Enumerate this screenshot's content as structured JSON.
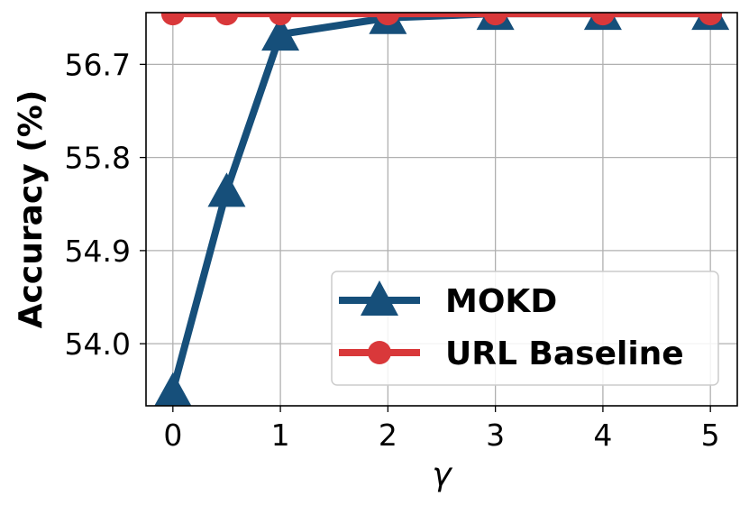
{
  "chart_data": {
    "type": "line",
    "xlabel": "γ",
    "ylabel": "Accuracy (%)",
    "x": [
      0,
      0.5,
      1,
      2,
      3,
      4,
      5
    ],
    "xticks": [
      "0",
      "1",
      "2",
      "3",
      "4",
      "5"
    ],
    "xtick_values": [
      0,
      1,
      2,
      3,
      4,
      5
    ],
    "yticks": [
      "54.0",
      "54.9",
      "55.8",
      "56.7"
    ],
    "ytick_values": [
      54.0,
      54.9,
      55.8,
      56.7
    ],
    "xlim": [
      -0.25,
      5.25
    ],
    "ylim": [
      53.4,
      57.2
    ],
    "grid": true,
    "legend_position": "lower-right",
    "series": [
      {
        "name": "MOKD",
        "color": "#164F7A",
        "marker": "triangle",
        "x": [
          0,
          0.5,
          1,
          2,
          3,
          4,
          5
        ],
        "values": [
          53.55,
          55.48,
          56.99,
          57.15,
          57.19,
          57.19,
          57.19
        ]
      },
      {
        "name": "URL Baseline",
        "color": "#D9383A",
        "marker": "circle",
        "x": [
          0,
          0.5,
          1,
          2,
          3,
          4,
          5
        ],
        "values": [
          57.19,
          57.19,
          57.19,
          57.19,
          57.19,
          57.19,
          57.19
        ]
      }
    ]
  }
}
